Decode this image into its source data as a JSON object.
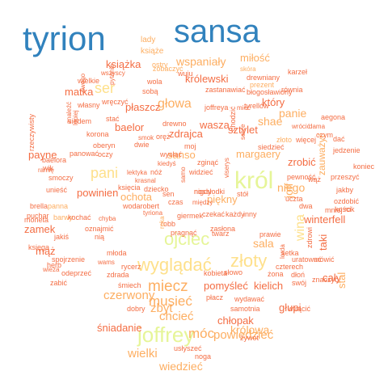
{
  "colors": {
    "blue": "#3182bd",
    "lightblue": "#6baed6",
    "green": "#d9ef8b",
    "yellowgreen": "#e6f598",
    "yellow": "#fee08b",
    "orange": "#fdae61",
    "red": "#f46d43",
    "darkred": "#d73027",
    "brown": "#a50026"
  },
  "words": [
    {
      "text": "tyrion",
      "c": "blue",
      "weight": 10
    },
    {
      "text": "sansa",
      "c": "blue",
      "weight": 10
    },
    {
      "text": "król",
      "c": "yellowgreen",
      "weight": 7
    },
    {
      "text": "joffrey",
      "c": "yellowgreen",
      "weight": 7
    },
    {
      "text": "wyglądać",
      "c": "yellow",
      "weight": 6
    },
    {
      "text": "ojciec",
      "c": "yellowgreen",
      "weight": 6
    },
    {
      "text": "złoty",
      "c": "yellow",
      "weight": 6
    },
    {
      "text": "pani",
      "c": "yellow",
      "weight": 5
    },
    {
      "text": "ser",
      "c": "yellow",
      "weight": 5
    },
    {
      "text": "miecz",
      "c": "orange",
      "weight": 5
    },
    {
      "text": "musieć",
      "c": "orange",
      "weight": 5
    },
    {
      "text": "móc",
      "c": "orange",
      "weight": 5
    },
    {
      "text": "czerwony",
      "c": "orange",
      "weight": 4
    },
    {
      "text": "zbyt",
      "c": "orange",
      "weight": 4
    },
    {
      "text": "chcieć",
      "c": "orange",
      "weight": 4
    },
    {
      "text": "powiedzieć",
      "c": "orange",
      "weight": 4
    },
    {
      "text": "wiedzieć",
      "c": "orange",
      "weight": 4
    },
    {
      "text": "wielki",
      "c": "orange",
      "weight": 4
    },
    {
      "text": "królowa",
      "c": "orange",
      "weight": 4
    },
    {
      "text": "głowa",
      "c": "orange",
      "weight": 4
    },
    {
      "text": "wspaniały",
      "c": "orange",
      "weight": 4
    },
    {
      "text": "wina",
      "c": "yellow",
      "weight": 4
    },
    {
      "text": "joff",
      "c": "orange",
      "weight": 4
    },
    {
      "text": "sala",
      "c": "orange",
      "weight": 3
    },
    {
      "text": "ochota",
      "c": "orange",
      "weight": 3
    },
    {
      "text": "panie",
      "c": "orange",
      "weight": 3
    },
    {
      "text": "shae",
      "c": "orange",
      "weight": 3
    },
    {
      "text": "niego",
      "c": "orange",
      "weight": 3
    },
    {
      "text": "sansо",
      "c": "orange",
      "weight": 3
    },
    {
      "text": "zamek",
      "c": "red",
      "weight": 3
    },
    {
      "text": "mąż",
      "c": "red",
      "weight": 3
    },
    {
      "text": "pomyśleć",
      "c": "red",
      "weight": 3
    },
    {
      "text": "kielich",
      "c": "red",
      "weight": 3
    },
    {
      "text": "winterfell",
      "c": "red",
      "weight": 3
    },
    {
      "text": "śniadanie",
      "c": "red",
      "weight": 3
    },
    {
      "text": "chłopak",
      "c": "red",
      "weight": 3
    },
    {
      "text": "książka",
      "c": "red",
      "weight": 3
    },
    {
      "text": "miłość",
      "c": "orange",
      "weight": 3
    },
    {
      "text": "królewski",
      "c": "red",
      "weight": 3
    },
    {
      "text": "baelor",
      "c": "red",
      "weight": 3
    },
    {
      "text": "zdrajca",
      "c": "red",
      "weight": 3
    },
    {
      "text": "wasza",
      "c": "red",
      "weight": 3
    },
    {
      "text": "sztylet",
      "c": "red",
      "weight": 3
    },
    {
      "text": "margaery",
      "c": "orange",
      "weight": 3
    },
    {
      "text": "zrobić",
      "c": "red",
      "weight": 3
    },
    {
      "text": "piękny",
      "c": "orange",
      "weight": 3
    },
    {
      "text": "powinien",
      "c": "red",
      "weight": 3
    },
    {
      "text": "payne",
      "c": "red",
      "weight": 3
    },
    {
      "text": "płaszcz",
      "c": "red",
      "weight": 3
    },
    {
      "text": "matka",
      "c": "red",
      "weight": 3
    },
    {
      "text": "który",
      "c": "red",
      "weight": 3
    },
    {
      "text": "cały",
      "c": "red",
      "weight": 3
    },
    {
      "text": "taki",
      "c": "red",
      "weight": 3
    },
    {
      "text": "stal",
      "c": "orange",
      "weight": 3
    },
    {
      "text": "zauważyć",
      "c": "orange",
      "weight": 3
    },
    {
      "text": "lady",
      "c": "orange",
      "weight": 3
    },
    {
      "text": "książe",
      "c": "orange",
      "weight": 2
    },
    {
      "text": "zobaczyć",
      "c": "orange",
      "weight": 2
    },
    {
      "text": "drewniany",
      "c": "red",
      "weight": 1
    },
    {
      "text": "karzeł",
      "c": "red",
      "weight": 2
    },
    {
      "text": "prezent",
      "c": "orange",
      "weight": 2
    },
    {
      "text": "skóra",
      "c": "orange",
      "weight": 2
    },
    {
      "text": "równia",
      "c": "red",
      "weight": 1
    },
    {
      "text": "ostry",
      "c": "orange",
      "weight": 2
    },
    {
      "text": "wuju",
      "c": "red",
      "weight": 2
    },
    {
      "text": "wszyscy",
      "c": "red",
      "weight": 2
    },
    {
      "text": "wielkie",
      "c": "red",
      "weight": 1
    },
    {
      "text": "wola",
      "c": "red",
      "weight": 2
    },
    {
      "text": "sobą",
      "c": "red",
      "weight": 2
    },
    {
      "text": "zastanawiać",
      "c": "red",
      "weight": 2
    },
    {
      "text": "błogosławiony",
      "c": "red",
      "weight": 2
    },
    {
      "text": "własny",
      "c": "red",
      "weight": 2
    },
    {
      "text": "joffreya",
      "c": "red",
      "weight": 2
    },
    {
      "text": "tyrellów",
      "c": "red",
      "weight": 2
    },
    {
      "text": "aegona",
      "c": "red",
      "weight": 2
    },
    {
      "text": "wrócić",
      "c": "red",
      "weight": 2
    },
    {
      "text": "dama",
      "c": "red",
      "weight": 1
    },
    {
      "text": "czym",
      "c": "red",
      "weight": 1
    },
    {
      "text": "dać",
      "c": "red",
      "weight": 2
    },
    {
      "text": "złoto",
      "c": "orange",
      "weight": 2
    },
    {
      "text": "więcej",
      "c": "red",
      "weight": 2
    },
    {
      "text": "jedzenie",
      "c": "red",
      "weight": 2
    },
    {
      "text": "siedem",
      "c": "red",
      "weight": 2
    },
    {
      "text": "stać",
      "c": "red",
      "weight": 2
    },
    {
      "text": "korona",
      "c": "red",
      "weight": 2
    },
    {
      "text": "drewno",
      "c": "red",
      "weight": 2
    },
    {
      "text": "wręczyć",
      "c": "red",
      "weight": 2
    },
    {
      "text": "rzeczywisty",
      "c": "red",
      "weight": 2
    },
    {
      "text": "oberyn",
      "c": "red",
      "weight": 2
    },
    {
      "text": "smok",
      "c": "red",
      "weight": 2
    },
    {
      "text": "oręż",
      "c": "red",
      "weight": 1
    },
    {
      "text": "dwie",
      "c": "red",
      "weight": 2
    },
    {
      "text": "siedzieć",
      "c": "red",
      "weight": 2
    },
    {
      "text": "chodzić",
      "c": "red",
      "weight": 2
    },
    {
      "text": "moj",
      "c": "red",
      "weight": 2
    },
    {
      "text": "baelora",
      "c": "red",
      "weight": 2
    },
    {
      "text": "panować",
      "c": "red",
      "weight": 2
    },
    {
      "text": "oczy",
      "c": "red",
      "weight": 2
    },
    {
      "text": "wysłać",
      "c": "red",
      "weight": 2
    },
    {
      "text": "zginąć",
      "c": "red",
      "weight": 2
    },
    {
      "text": "smoczy",
      "c": "red",
      "weight": 2
    },
    {
      "text": "ramię",
      "c": "red",
      "weight": 2
    },
    {
      "text": "wik",
      "c": "red",
      "weight": 1
    },
    {
      "text": "lektyka",
      "c": "red",
      "weight": 2
    },
    {
      "text": "nóż",
      "c": "red",
      "weight": 2
    },
    {
      "text": "kiedyś",
      "c": "red",
      "weight": 1
    },
    {
      "text": "widzieć",
      "c": "red",
      "weight": 2
    },
    {
      "text": "viserys",
      "c": "red",
      "weight": 1
    },
    {
      "text": "pewność",
      "c": "red",
      "weight": 2
    },
    {
      "text": "koniec",
      "c": "red",
      "weight": 1
    },
    {
      "text": "przeszyć",
      "c": "red",
      "weight": 2
    },
    {
      "text": "krasnal",
      "c": "red",
      "weight": 2
    },
    {
      "text": "dziecko",
      "c": "red",
      "weight": 2
    },
    {
      "text": "księcia",
      "c": "red",
      "weight": 1
    },
    {
      "text": "słodki",
      "c": "red",
      "weight": 2
    },
    {
      "text": "wąż",
      "c": "red",
      "weight": 2
    },
    {
      "text": "jakby",
      "c": "red",
      "weight": 2
    },
    {
      "text": "unieść",
      "c": "red",
      "weight": 2
    },
    {
      "text": "panna",
      "c": "orange",
      "weight": 2
    },
    {
      "text": "brella",
      "c": "red",
      "weight": 2
    },
    {
      "text": "wodarobert",
      "c": "red",
      "weight": 2
    },
    {
      "text": "sen",
      "c": "red",
      "weight": 2
    },
    {
      "text": "czas",
      "c": "red",
      "weight": 2
    },
    {
      "text": "stół",
      "c": "red",
      "weight": 2
    },
    {
      "text": "uczta",
      "c": "red",
      "weight": 2
    },
    {
      "text": "ozdobić",
      "c": "red",
      "weight": 2
    },
    {
      "text": "moneta",
      "c": "red",
      "weight": 2
    },
    {
      "text": "barwy",
      "c": "orange",
      "weight": 2
    },
    {
      "text": "puchar",
      "c": "red",
      "weight": 2
    },
    {
      "text": "kochać",
      "c": "red",
      "weight": 2
    },
    {
      "text": "chyba",
      "c": "red",
      "weight": 2
    },
    {
      "text": "tyriona",
      "c": "red",
      "weight": 2
    },
    {
      "text": "giermek",
      "c": "red",
      "weight": 1
    },
    {
      "text": "czekać",
      "c": "red",
      "weight": 1
    },
    {
      "text": "każdy",
      "c": "red",
      "weight": 2
    },
    {
      "text": "inny",
      "c": "red",
      "weight": 2
    },
    {
      "text": "dwa",
      "c": "red",
      "weight": 2
    },
    {
      "text": "mniej",
      "c": "red",
      "weight": 2
    },
    {
      "text": "kości",
      "c": "red",
      "weight": 2
    },
    {
      "text": "rok",
      "c": "red",
      "weight": 2
    },
    {
      "text": "jakiś",
      "c": "red",
      "weight": 2
    },
    {
      "text": "oznajmić",
      "c": "red",
      "weight": 2
    },
    {
      "text": "robb",
      "c": "red",
      "weight": 2
    },
    {
      "text": "pragnąć",
      "c": "red",
      "weight": 2
    },
    {
      "text": "twarz",
      "c": "red",
      "weight": 2
    },
    {
      "text": "zasłona",
      "c": "red",
      "weight": 2
    },
    {
      "text": "prawie",
      "c": "red",
      "weight": 2
    },
    {
      "text": "spojrzenie",
      "c": "red",
      "weight": 2
    },
    {
      "text": "nią",
      "c": "red",
      "weight": 2
    },
    {
      "text": "księga",
      "c": "red",
      "weight": 2
    },
    {
      "text": "wieża",
      "c": "red",
      "weight": 2
    },
    {
      "text": "rycerz",
      "c": "red",
      "weight": 2
    },
    {
      "text": "młoda",
      "c": "red",
      "weight": 1
    },
    {
      "text": "uratować",
      "c": "red",
      "weight": 2
    },
    {
      "text": "mówić",
      "c": "red",
      "weight": 2
    },
    {
      "text": "herb",
      "c": "red",
      "weight": 2
    },
    {
      "text": "wams",
      "c": "red",
      "weight": 2
    },
    {
      "text": "czterech",
      "c": "red",
      "weight": 2
    },
    {
      "text": "odeprzeć",
      "c": "red",
      "weight": 1
    },
    {
      "text": "zdrada",
      "c": "red",
      "weight": 2
    },
    {
      "text": "kobieta",
      "c": "red",
      "weight": 2
    },
    {
      "text": "słowo",
      "c": "red",
      "weight": 2
    },
    {
      "text": "żona",
      "c": "red",
      "weight": 2
    },
    {
      "text": "dłoń",
      "c": "red",
      "weight": 2
    },
    {
      "text": "zabić",
      "c": "red",
      "weight": 2
    },
    {
      "text": "śmiech",
      "c": "red",
      "weight": 2
    },
    {
      "text": "wydawać",
      "c": "red",
      "weight": 2
    },
    {
      "text": "swój",
      "c": "red",
      "weight": 2
    },
    {
      "text": "znaczyć",
      "c": "red",
      "weight": 2
    },
    {
      "text": "dobry",
      "c": "red",
      "weight": 2
    },
    {
      "text": "płacz",
      "c": "red",
      "weight": 2
    },
    {
      "text": "samotnia",
      "c": "red",
      "weight": 2
    },
    {
      "text": "wtrącić",
      "c": "red",
      "weight": 2
    },
    {
      "text": "usłyszeć",
      "c": "red",
      "weight": 2
    },
    {
      "text": "żywot",
      "c": "red",
      "weight": 2
    },
    {
      "text": "noga",
      "c": "red",
      "weight": 2
    },
    {
      "text": "swego",
      "c": "red",
      "weight": 2
    },
    {
      "text": "znaleźć",
      "c": "red",
      "weight": 2
    },
    {
      "text": "lepiej",
      "c": "red",
      "weight": 1
    },
    {
      "text": "serce",
      "c": "red",
      "weight": 1
    },
    {
      "text": "samo",
      "c": "red",
      "weight": 1
    },
    {
      "text": "pytanie",
      "c": "red",
      "weight": 1
    },
    {
      "text": "lorda",
      "c": "red",
      "weight": 1
    },
    {
      "text": "zdrowi",
      "c": "red",
      "weight": 1
    },
    {
      "text": "między",
      "c": "red",
      "weight": 1
    },
    {
      "text": "ręka",
      "c": "orange",
      "weight": 2
    },
    {
      "text": "setka",
      "c": "red",
      "weight": 1
    },
    {
      "text": "głupi",
      "c": "red",
      "weight": 1
    },
    {
      "text": "mieć",
      "c": "red",
      "weight": 2
    },
    {
      "text": "nigdy",
      "c": "red",
      "weight": 3
    },
    {
      "text": "nos",
      "c": "red",
      "weight": 2
    }
  ]
}
